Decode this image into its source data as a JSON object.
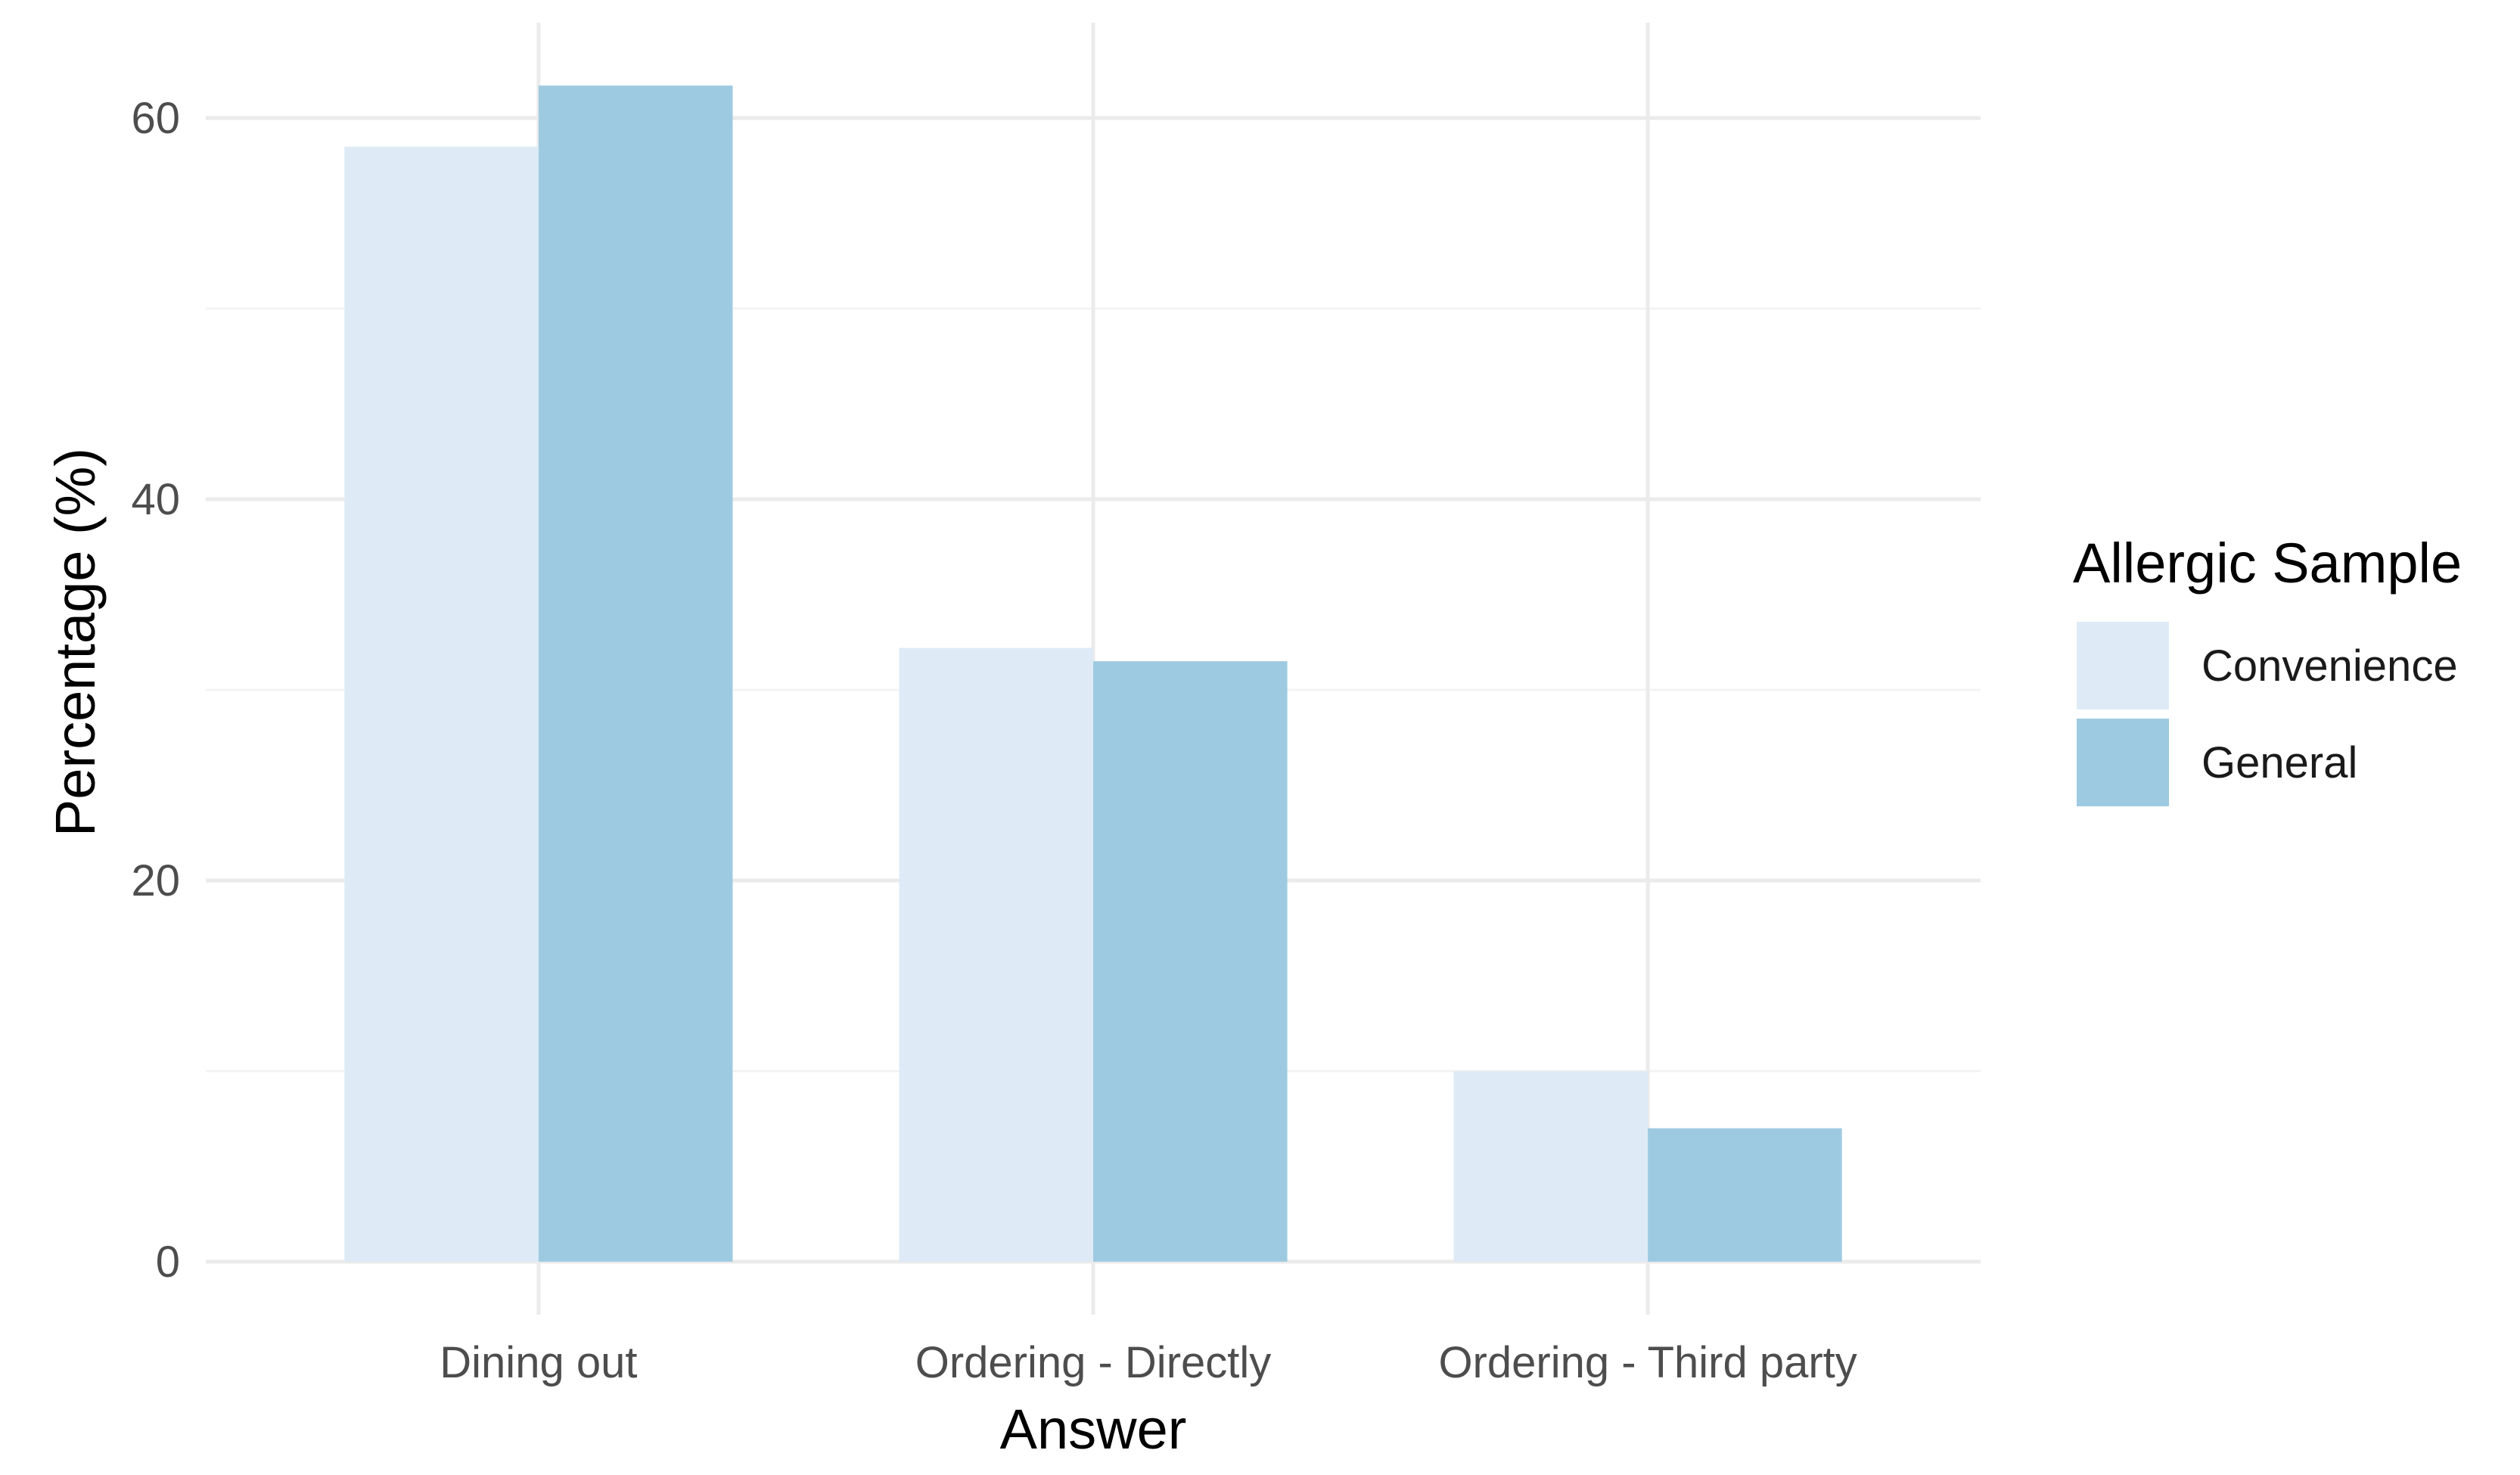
{
  "chart_data": {
    "type": "bar",
    "title": "",
    "xlabel": "Answer",
    "ylabel": "Percentage (%)",
    "categories": [
      "Dining out",
      "Ordering - Directly",
      "Ordering - Third party"
    ],
    "series": [
      {
        "name": "Convenience",
        "color": "#deebf7",
        "values": [
          58.5,
          32.2,
          10.0
        ]
      },
      {
        "name": "General",
        "color": "#9ecae1",
        "values": [
          61.7,
          31.5,
          7.0
        ]
      }
    ],
    "ylim": [
      0,
      65
    ],
    "yticks": [
      0,
      20,
      40,
      60
    ],
    "grid": true,
    "legend": {
      "title": "Allergic Sample",
      "position": "right"
    }
  }
}
